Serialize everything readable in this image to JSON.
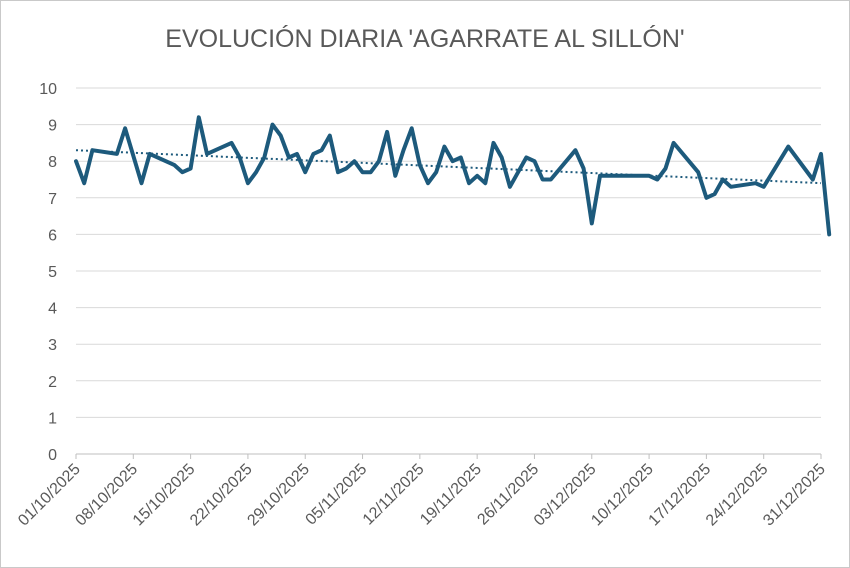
{
  "chart_data": {
    "type": "line",
    "title": "EVOLUCIÓN DIARIA 'AGARRATE AL SILLÓN'",
    "xlabel": "",
    "ylabel": "",
    "ylim": [
      0,
      10
    ],
    "yticks": [
      "0",
      "1",
      "2",
      "3",
      "4",
      "5",
      "6",
      "7",
      "8",
      "9",
      "10"
    ],
    "xlim_day": [
      0,
      91
    ],
    "x_tick_labels": [
      "01/10/2025",
      "08/10/2025",
      "15/10/2025",
      "22/10/2025",
      "29/10/2025",
      "05/11/2025",
      "12/11/2025",
      "19/11/2025",
      "26/11/2025",
      "03/12/2025",
      "10/12/2025",
      "17/12/2025",
      "24/12/2025",
      "31/12/2025"
    ],
    "grid": true,
    "legend": "none",
    "line_color": "#1d5a7c",
    "trend_color": "#1d5a7c",
    "series": [
      {
        "values": [
          [
            "01/10/2025",
            8.0
          ],
          [
            "02/10/2025",
            7.4
          ],
          [
            "03/10/2025",
            8.3
          ],
          [
            "06/10/2025",
            8.2
          ],
          [
            "07/10/2025",
            8.9
          ],
          [
            "09/10/2025",
            7.4
          ],
          [
            "10/10/2025",
            8.2
          ],
          [
            "13/10/2025",
            7.9
          ],
          [
            "14/10/2025",
            7.7
          ],
          [
            "15/10/2025",
            7.8
          ],
          [
            "16/10/2025",
            9.2
          ],
          [
            "17/10/2025",
            8.2
          ],
          [
            "20/10/2025",
            8.5
          ],
          [
            "21/10/2025",
            8.1
          ],
          [
            "22/10/2025",
            7.4
          ],
          [
            "23/10/2025",
            7.7
          ],
          [
            "24/10/2025",
            8.1
          ],
          [
            "25/10/2025",
            9.0
          ],
          [
            "26/10/2025",
            8.7
          ],
          [
            "27/10/2025",
            8.1
          ],
          [
            "28/10/2025",
            8.2
          ],
          [
            "29/10/2025",
            7.7
          ],
          [
            "30/10/2025",
            8.2
          ],
          [
            "31/10/2025",
            8.3
          ],
          [
            "01/11/2025",
            8.7
          ],
          [
            "02/11/2025",
            7.7
          ],
          [
            "03/11/2025",
            7.8
          ],
          [
            "04/11/2025",
            8.0
          ],
          [
            "05/11/2025",
            7.7
          ],
          [
            "06/11/2025",
            7.7
          ],
          [
            "07/11/2025",
            8.0
          ],
          [
            "08/11/2025",
            8.8
          ],
          [
            "09/11/2025",
            7.6
          ],
          [
            "10/11/2025",
            8.3
          ],
          [
            "11/11/2025",
            8.9
          ],
          [
            "12/11/2025",
            7.9
          ],
          [
            "13/11/2025",
            7.4
          ],
          [
            "14/11/2025",
            7.7
          ],
          [
            "15/11/2025",
            8.4
          ],
          [
            "16/11/2025",
            8.0
          ],
          [
            "17/11/2025",
            8.1
          ],
          [
            "18/11/2025",
            7.4
          ],
          [
            "19/11/2025",
            7.6
          ],
          [
            "20/11/2025",
            7.4
          ],
          [
            "21/11/2025",
            8.5
          ],
          [
            "22/11/2025",
            8.1
          ],
          [
            "23/11/2025",
            7.3
          ],
          [
            "24/11/2025",
            7.7
          ],
          [
            "25/11/2025",
            8.1
          ],
          [
            "26/11/2025",
            8.0
          ],
          [
            "27/11/2025",
            7.5
          ],
          [
            "28/11/2025",
            7.5
          ],
          [
            "01/12/2025",
            8.3
          ],
          [
            "02/12/2025",
            7.8
          ],
          [
            "03/12/2025",
            6.3
          ],
          [
            "04/12/2025",
            7.6
          ],
          [
            "10/12/2025",
            7.6
          ],
          [
            "11/12/2025",
            7.5
          ],
          [
            "12/12/2025",
            7.8
          ],
          [
            "13/12/2025",
            8.5
          ],
          [
            "16/12/2025",
            7.7
          ],
          [
            "17/12/2025",
            7.0
          ],
          [
            "18/12/2025",
            7.1
          ],
          [
            "19/12/2025",
            7.5
          ],
          [
            "20/12/2025",
            7.3
          ],
          [
            "23/12/2025",
            7.4
          ],
          [
            "24/12/2025",
            7.3
          ],
          [
            "27/12/2025",
            8.4
          ],
          [
            "30/12/2025",
            7.5
          ],
          [
            "31/12/2025",
            8.2
          ],
          [
            "01/01/2026",
            6.0
          ]
        ]
      }
    ],
    "trendline": {
      "type": "linear",
      "y_start": 8.3,
      "y_end": 7.4
    }
  }
}
